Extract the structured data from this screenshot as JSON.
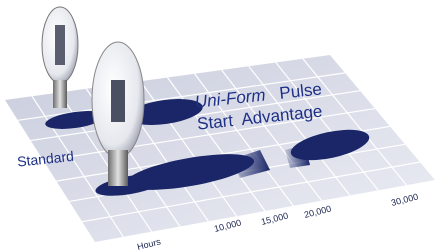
{
  "headline": {
    "brand": "Uni-Form",
    "line1_rest": "Pulse",
    "line2": "Start  Advantage"
  },
  "bulb_label": "Standard",
  "axis": {
    "label": "Hours",
    "ticks": [
      "10,000",
      "15,000",
      "20,000",
      "30,000"
    ]
  }
}
